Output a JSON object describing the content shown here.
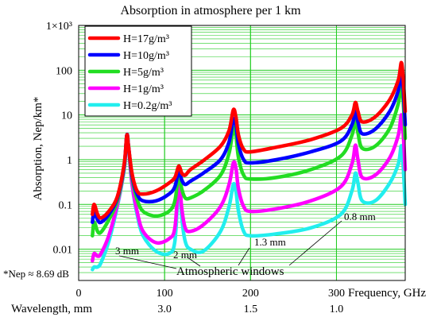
{
  "chart_data": {
    "type": "line",
    "title": "Absorption in atmosphere per 1 km",
    "xlabel": "Frequency, GHz",
    "ylabel": "Absorption, Nep/km*",
    "xlim": [
      0,
      380
    ],
    "ylog": true,
    "ylim": [
      0.002,
      1000
    ],
    "x_ticks": [
      0,
      100,
      200,
      300
    ],
    "x_tick_labels": [
      "0",
      "100",
      "200",
      "300"
    ],
    "y_ticks": [
      0.01,
      0.1,
      1,
      10,
      100,
      1000
    ],
    "y_tick_labels": [
      "0.01",
      "0.1",
      "1",
      "10",
      "100",
      "1×10³"
    ],
    "grid": true,
    "grid_color": "#22cc22",
    "legend_position": "top-left",
    "wavelength_axis": {
      "label": "Wavelength, mm",
      "ticks": [
        {
          "freq": 100,
          "label": "3.0"
        },
        {
          "freq": 200,
          "label": "1.5"
        },
        {
          "freq": 300,
          "label": "1.0"
        }
      ]
    },
    "footnote": "*Nep ≈ 8.69 dB",
    "annotations": {
      "windows_label": "Atmospheric windows",
      "window_3mm": "3 mm",
      "window_2mm": "2 mm",
      "window_1_3mm": "1.3 mm",
      "window_0_8mm": "0.8 mm"
    },
    "series": [
      {
        "name": "H=17g/m³",
        "color": "#ff0000",
        "x": [
          16,
          18,
          22,
          26,
          35,
          45,
          53,
          56,
          58,
          62,
          68,
          75,
          90,
          105,
          112,
          116,
          118,
          120,
          124,
          130,
          145,
          165,
          175,
          180,
          183,
          186,
          192,
          200,
          230,
          270,
          305,
          318,
          322,
          325,
          330,
          345,
          362,
          372,
          376,
          380
        ],
        "y": [
          0.06,
          0.1,
          0.06,
          0.05,
          0.07,
          0.15,
          0.8,
          3.5,
          2,
          0.5,
          0.2,
          0.17,
          0.2,
          0.3,
          0.4,
          0.7,
          0.65,
          0.5,
          0.45,
          0.6,
          0.95,
          2,
          4.5,
          13,
          9,
          3.5,
          1.7,
          1.5,
          1.9,
          2.8,
          5,
          10,
          19,
          12,
          7,
          9,
          22,
          60,
          140,
          12
        ]
      },
      {
        "name": "H=10g/m³",
        "color": "#0000ff",
        "x": [
          16,
          18,
          22,
          26,
          35,
          45,
          53,
          56,
          58,
          62,
          68,
          75,
          90,
          105,
          112,
          116,
          118,
          120,
          124,
          130,
          145,
          165,
          175,
          180,
          183,
          186,
          192,
          200,
          230,
          270,
          305,
          318,
          322,
          325,
          330,
          345,
          362,
          372,
          376,
          380
        ],
        "y": [
          0.04,
          0.07,
          0.045,
          0.04,
          0.06,
          0.14,
          0.75,
          3.5,
          2,
          0.45,
          0.17,
          0.12,
          0.12,
          0.17,
          0.25,
          0.55,
          0.5,
          0.35,
          0.28,
          0.33,
          0.5,
          1.0,
          2.5,
          8,
          6,
          2.2,
          1.0,
          0.85,
          1.0,
          1.5,
          2.6,
          6,
          12,
          7,
          3.8,
          4.8,
          12,
          35,
          90,
          6
        ]
      },
      {
        "name": "H=5g/m³",
        "color": "#22dd22",
        "x": [
          16,
          18,
          22,
          26,
          35,
          45,
          53,
          56,
          58,
          62,
          68,
          75,
          90,
          105,
          112,
          116,
          118,
          120,
          124,
          130,
          145,
          165,
          175,
          180,
          183,
          186,
          192,
          200,
          230,
          270,
          305,
          318,
          322,
          325,
          330,
          345,
          362,
          372,
          376,
          380
        ],
        "y": [
          0.02,
          0.04,
          0.025,
          0.024,
          0.045,
          0.12,
          0.7,
          3.5,
          2,
          0.4,
          0.13,
          0.07,
          0.055,
          0.07,
          0.12,
          0.45,
          0.38,
          0.22,
          0.14,
          0.14,
          0.2,
          0.45,
          1.4,
          5,
          3.5,
          1.1,
          0.45,
          0.37,
          0.4,
          0.6,
          1.2,
          3.5,
          8,
          4,
          1.8,
          2.0,
          5,
          18,
          50,
          3
        ]
      },
      {
        "name": "H=1g/m³",
        "color": "#ff00ff",
        "x": [
          16,
          18,
          22,
          26,
          35,
          45,
          53,
          56,
          58,
          62,
          68,
          75,
          90,
          105,
          112,
          116,
          118,
          120,
          124,
          130,
          145,
          165,
          175,
          180,
          183,
          186,
          192,
          200,
          230,
          270,
          305,
          318,
          322,
          325,
          330,
          345,
          362,
          372,
          376,
          380
        ],
        "y": [
          0.0055,
          0.008,
          0.007,
          0.008,
          0.02,
          0.1,
          0.65,
          3.5,
          2,
          0.3,
          0.07,
          0.025,
          0.014,
          0.017,
          0.03,
          0.3,
          0.25,
          0.08,
          0.03,
          0.025,
          0.035,
          0.09,
          0.28,
          0.85,
          0.65,
          0.22,
          0.09,
          0.07,
          0.08,
          0.12,
          0.25,
          0.8,
          2.1,
          1.0,
          0.4,
          0.45,
          1.1,
          3.5,
          9.5,
          0.6
        ]
      },
      {
        "name": "H=0.2g/m³",
        "color": "#22eeee",
        "x": [
          16,
          18,
          22,
          26,
          35,
          45,
          53,
          56,
          58,
          62,
          68,
          75,
          90,
          105,
          112,
          116,
          118,
          120,
          124,
          130,
          145,
          165,
          175,
          180,
          183,
          186,
          192,
          200,
          230,
          270,
          305,
          318,
          322,
          325,
          330,
          345,
          362,
          372,
          376,
          380
        ],
        "y": [
          0.0035,
          0.004,
          0.004,
          0.005,
          0.015,
          0.09,
          0.6,
          3.5,
          2,
          0.28,
          0.06,
          0.02,
          0.009,
          0.008,
          0.015,
          0.25,
          0.2,
          0.05,
          0.015,
          0.01,
          0.009,
          0.025,
          0.09,
          0.28,
          0.2,
          0.07,
          0.025,
          0.02,
          0.022,
          0.03,
          0.06,
          0.2,
          0.5,
          0.3,
          0.12,
          0.12,
          0.3,
          0.8,
          1.9,
          0.1
        ]
      }
    ]
  }
}
